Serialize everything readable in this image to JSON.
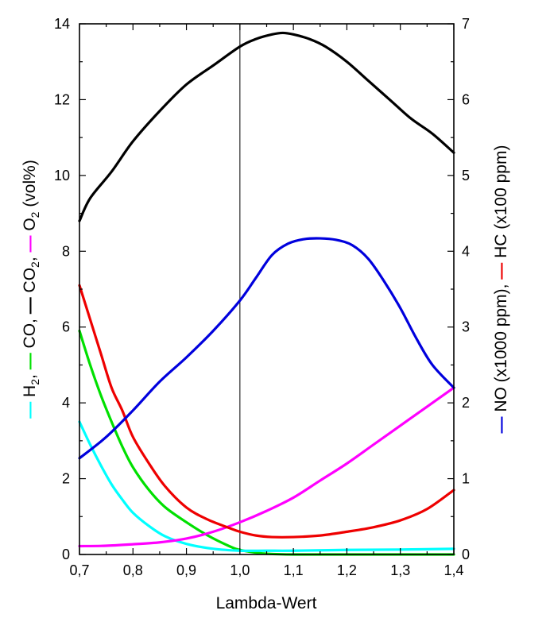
{
  "chart_data": {
    "type": "line",
    "xlabel": "Lambda-Wert",
    "xlim": [
      0.7,
      1.4
    ],
    "ylim_left": [
      0,
      14
    ],
    "ylim_right": [
      0,
      7
    ],
    "x_ticks": [
      "0,7",
      "0,8",
      "0,9",
      "1,0",
      "1,1",
      "1,2",
      "1,3",
      "1,4"
    ],
    "y_left_ticks": [
      "0",
      "2",
      "4",
      "6",
      "8",
      "10",
      "12",
      "14"
    ],
    "y_right_ticks": [
      "0",
      "1",
      "2",
      "3",
      "4",
      "5",
      "6",
      "7"
    ],
    "reference_line_x": 1.0,
    "left_axis_label": {
      "parts": [
        {
          "text": "H",
          "sub": "2",
          "suffix": ",",
          "color": "#00ffff"
        },
        {
          "text": "CO",
          "sub": "",
          "suffix": ",",
          "color": "#00e000"
        },
        {
          "text": "CO",
          "sub": "2",
          "suffix": ",",
          "color": "#000000"
        },
        {
          "text": "O",
          "sub": "2",
          "suffix": " (vol%)",
          "color": "#ff00ff"
        }
      ]
    },
    "right_axis_label": {
      "parts": [
        {
          "text": "NO (x1000 ppm),",
          "color": "#0000dd"
        },
        {
          "text": "HC (x100 ppm)",
          "color": "#ee0000"
        }
      ]
    },
    "series": [
      {
        "key": "CO2",
        "axis": "left",
        "color": "#000000",
        "x": [
          0.7,
          0.72,
          0.76,
          0.8,
          0.85,
          0.9,
          0.95,
          1.0,
          1.03,
          1.06,
          1.08,
          1.1,
          1.13,
          1.16,
          1.2,
          1.24,
          1.28,
          1.32,
          1.36,
          1.4
        ],
        "y": [
          8.8,
          9.4,
          10.1,
          10.9,
          11.7,
          12.4,
          12.9,
          13.4,
          13.6,
          13.72,
          13.76,
          13.72,
          13.6,
          13.4,
          13.0,
          12.5,
          12.0,
          11.5,
          11.1,
          10.6
        ]
      },
      {
        "key": "CO",
        "axis": "left",
        "color": "#00e000",
        "x": [
          0.7,
          0.72,
          0.74,
          0.76,
          0.78,
          0.8,
          0.83,
          0.86,
          0.9,
          0.94,
          0.98,
          1.0,
          1.03,
          1.05,
          1.1,
          1.2,
          1.3,
          1.4
        ],
        "y": [
          5.9,
          5.0,
          4.2,
          3.5,
          2.85,
          2.3,
          1.7,
          1.25,
          0.85,
          0.5,
          0.22,
          0.12,
          0.05,
          0.02,
          0.0,
          0.0,
          0.0,
          0.0
        ]
      },
      {
        "key": "H2",
        "axis": "left",
        "color": "#00ffff",
        "x": [
          0.7,
          0.72,
          0.74,
          0.76,
          0.78,
          0.8,
          0.83,
          0.86,
          0.9,
          0.95,
          1.0,
          1.05,
          1.1,
          1.2,
          1.3,
          1.4
        ],
        "y": [
          3.5,
          2.9,
          2.35,
          1.85,
          1.45,
          1.1,
          0.75,
          0.48,
          0.28,
          0.15,
          0.1,
          0.1,
          0.1,
          0.12,
          0.13,
          0.15
        ]
      },
      {
        "key": "O2",
        "axis": "left",
        "color": "#ff00ff",
        "x": [
          0.7,
          0.75,
          0.8,
          0.85,
          0.9,
          0.95,
          1.0,
          1.05,
          1.1,
          1.15,
          1.2,
          1.25,
          1.3,
          1.35,
          1.4
        ],
        "y": [
          0.22,
          0.23,
          0.27,
          0.32,
          0.42,
          0.6,
          0.85,
          1.15,
          1.5,
          1.95,
          2.4,
          2.9,
          3.4,
          3.9,
          4.4
        ]
      },
      {
        "key": "HC",
        "axis": "right",
        "color": "#ee0000",
        "x": [
          0.7,
          0.72,
          0.74,
          0.76,
          0.78,
          0.8,
          0.83,
          0.86,
          0.9,
          0.94,
          0.98,
          1.0,
          1.03,
          1.06,
          1.1,
          1.15,
          1.2,
          1.25,
          1.3,
          1.35,
          1.4
        ],
        "y": [
          3.55,
          3.1,
          2.65,
          2.2,
          1.9,
          1.55,
          1.2,
          0.9,
          0.62,
          0.46,
          0.35,
          0.3,
          0.25,
          0.23,
          0.23,
          0.25,
          0.3,
          0.36,
          0.45,
          0.6,
          0.85
        ]
      },
      {
        "key": "NO",
        "axis": "right",
        "color": "#0000dd",
        "x": [
          0.7,
          0.75,
          0.8,
          0.85,
          0.9,
          0.95,
          1.0,
          1.03,
          1.06,
          1.09,
          1.12,
          1.15,
          1.18,
          1.21,
          1.24,
          1.27,
          1.3,
          1.33,
          1.36,
          1.4
        ],
        "y": [
          1.27,
          1.55,
          1.9,
          2.28,
          2.6,
          2.95,
          3.35,
          3.65,
          3.95,
          4.1,
          4.16,
          4.17,
          4.15,
          4.08,
          3.9,
          3.6,
          3.25,
          2.85,
          2.5,
          2.2
        ]
      }
    ]
  }
}
